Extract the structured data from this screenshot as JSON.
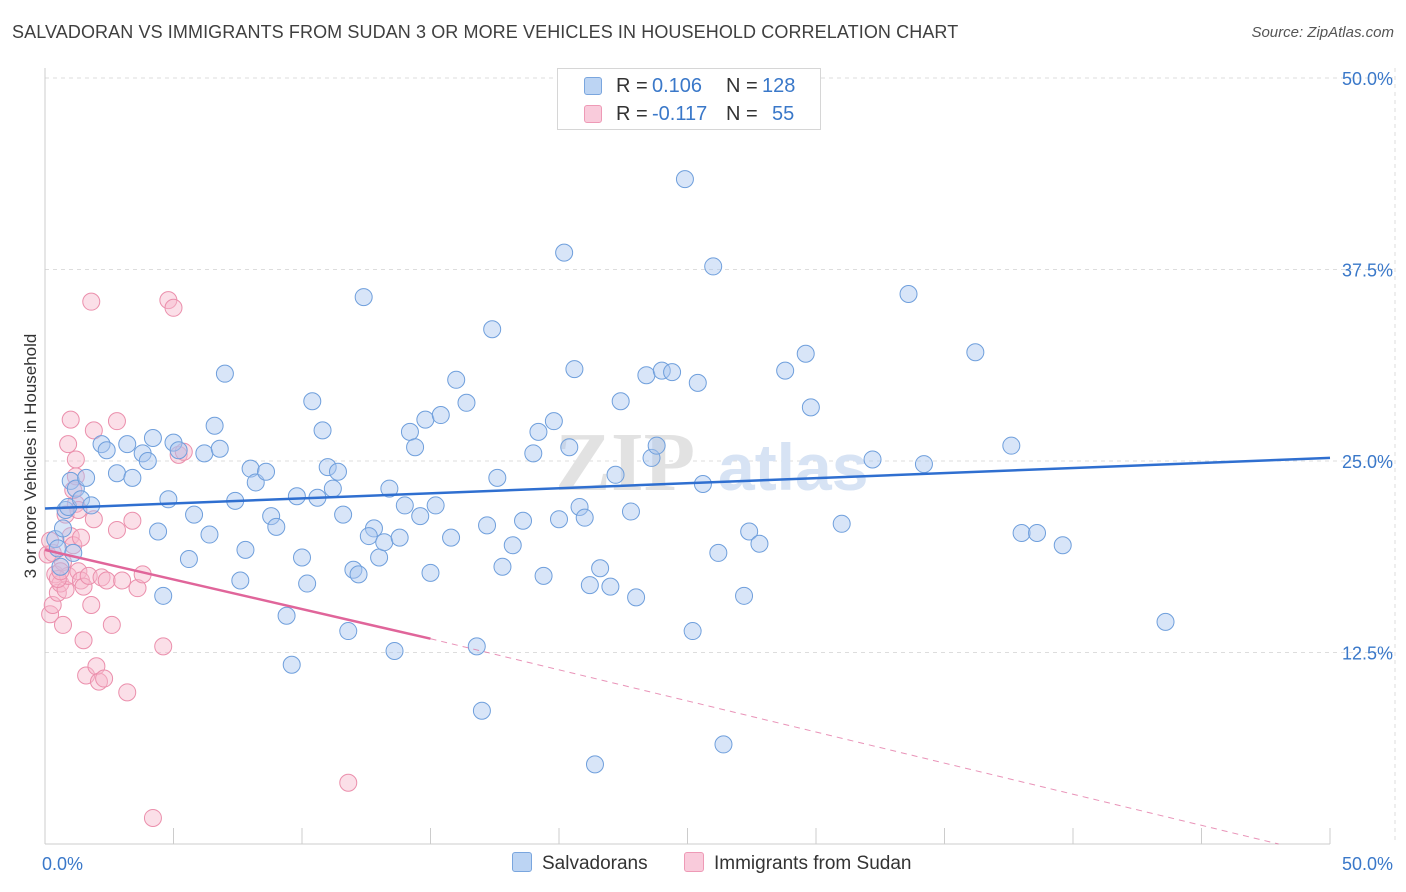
{
  "header": {
    "title": "SALVADORAN VS IMMIGRANTS FROM SUDAN 3 OR MORE VEHICLES IN HOUSEHOLD CORRELATION CHART",
    "source": "Source: ZipAtlas.com"
  },
  "legend": {
    "rows": [
      {
        "r_label": "R =",
        "r_value": "0.106",
        "n_label": "N =",
        "n_value": "128"
      },
      {
        "r_label": "R =",
        "r_value": "-0.117",
        "n_label": "N =",
        "n_value": "55"
      }
    ]
  },
  "bottom_legend": {
    "items": [
      {
        "label": "Salvadorans"
      },
      {
        "label": "Immigrants from Sudan"
      }
    ]
  },
  "watermark": {
    "text_zip": "ZIP",
    "text_atlas": "atlas"
  },
  "colors": {
    "blue_fill": "#a9c6ef",
    "blue_stroke": "#6f9fdc",
    "blue_line": "#2f6fd0",
    "pink_fill": "#f6b8cc",
    "pink_stroke": "#eb8fac",
    "pink_line": "#e0659a",
    "axis_text": "#3a78c9",
    "grid": "#dddddd"
  },
  "chart_data": {
    "type": "scatter",
    "title": "SALVADORAN VS IMMIGRANTS FROM SUDAN 3 OR MORE VEHICLES IN HOUSEHOLD CORRELATION CHART",
    "xlabel": "",
    "ylabel": "3 or more Vehicles in Household",
    "xlim": [
      0,
      50
    ],
    "ylim": [
      0,
      50
    ],
    "x_tick_labels": [
      "0.0%",
      "50.0%"
    ],
    "y_ticks": [
      12.5,
      25.0,
      37.5,
      50.0
    ],
    "y_tick_labels": [
      "12.5%",
      "25.0%",
      "37.5%",
      "50.0%"
    ],
    "grid": true,
    "series": [
      {
        "name": "Salvadorans",
        "R": 0.106,
        "N": 128,
        "trend": {
          "x0": 0,
          "y0": 21.9,
          "x1": 50,
          "y1": 25.2
        },
        "points": [
          [
            0.4,
            19.9
          ],
          [
            0.5,
            19.3
          ],
          [
            0.6,
            18.1
          ],
          [
            0.7,
            20.6
          ],
          [
            0.8,
            21.8
          ],
          [
            0.9,
            22.0
          ],
          [
            1.0,
            23.7
          ],
          [
            1.1,
            19.0
          ],
          [
            1.2,
            23.2
          ],
          [
            1.4,
            22.5
          ],
          [
            1.6,
            23.9
          ],
          [
            1.8,
            22.1
          ],
          [
            2.2,
            26.1
          ],
          [
            2.4,
            25.7
          ],
          [
            2.8,
            24.2
          ],
          [
            3.2,
            26.1
          ],
          [
            3.4,
            23.9
          ],
          [
            3.8,
            25.5
          ],
          [
            4.0,
            25.0
          ],
          [
            4.2,
            26.5
          ],
          [
            4.4,
            20.4
          ],
          [
            4.6,
            16.2
          ],
          [
            4.8,
            22.5
          ],
          [
            5.0,
            26.2
          ],
          [
            5.2,
            25.7
          ],
          [
            5.6,
            18.6
          ],
          [
            5.8,
            21.5
          ],
          [
            6.2,
            25.5
          ],
          [
            6.4,
            20.2
          ],
          [
            6.6,
            27.3
          ],
          [
            6.8,
            25.8
          ],
          [
            7.0,
            30.7
          ],
          [
            7.4,
            22.4
          ],
          [
            7.6,
            17.2
          ],
          [
            7.8,
            19.2
          ],
          [
            8.0,
            24.5
          ],
          [
            8.2,
            23.6
          ],
          [
            8.6,
            24.3
          ],
          [
            8.8,
            21.4
          ],
          [
            9.0,
            20.7
          ],
          [
            9.4,
            14.9
          ],
          [
            9.6,
            11.7
          ],
          [
            9.8,
            22.7
          ],
          [
            10.0,
            18.7
          ],
          [
            10.2,
            17.0
          ],
          [
            10.4,
            28.9
          ],
          [
            10.6,
            22.6
          ],
          [
            10.8,
            27.0
          ],
          [
            11.0,
            24.6
          ],
          [
            11.2,
            23.2
          ],
          [
            11.4,
            24.3
          ],
          [
            11.6,
            21.5
          ],
          [
            11.8,
            13.9
          ],
          [
            12.0,
            17.9
          ],
          [
            12.2,
            17.6
          ],
          [
            12.4,
            35.7
          ],
          [
            12.8,
            20.6
          ],
          [
            12.6,
            20.1
          ],
          [
            13.0,
            18.7
          ],
          [
            13.2,
            19.7
          ],
          [
            13.4,
            23.2
          ],
          [
            13.6,
            12.6
          ],
          [
            13.8,
            20.0
          ],
          [
            14.0,
            22.1
          ],
          [
            14.2,
            26.9
          ],
          [
            14.4,
            25.9
          ],
          [
            14.6,
            21.4
          ],
          [
            14.8,
            27.7
          ],
          [
            15.0,
            17.7
          ],
          [
            15.2,
            22.1
          ],
          [
            15.4,
            28.0
          ],
          [
            15.8,
            20.0
          ],
          [
            16.0,
            30.3
          ],
          [
            16.4,
            28.8
          ],
          [
            16.8,
            12.9
          ],
          [
            17.0,
            8.7
          ],
          [
            17.2,
            20.8
          ],
          [
            17.4,
            33.6
          ],
          [
            17.6,
            23.9
          ],
          [
            17.8,
            18.1
          ],
          [
            18.2,
            19.5
          ],
          [
            18.6,
            21.1
          ],
          [
            19.0,
            25.5
          ],
          [
            19.2,
            26.9
          ],
          [
            19.4,
            17.5
          ],
          [
            19.8,
            27.6
          ],
          [
            20.0,
            21.2
          ],
          [
            20.2,
            38.6
          ],
          [
            20.4,
            25.9
          ],
          [
            20.6,
            31.0
          ],
          [
            20.8,
            22.0
          ],
          [
            21.0,
            21.3
          ],
          [
            21.2,
            16.9
          ],
          [
            21.4,
            5.2
          ],
          [
            21.6,
            18.0
          ],
          [
            22.0,
            16.8
          ],
          [
            22.2,
            24.1
          ],
          [
            22.4,
            28.9
          ],
          [
            22.8,
            21.7
          ],
          [
            23.0,
            16.1
          ],
          [
            23.4,
            30.6
          ],
          [
            23.6,
            25.2
          ],
          [
            23.8,
            26.0
          ],
          [
            24.0,
            30.9
          ],
          [
            24.4,
            30.8
          ],
          [
            24.9,
            43.4
          ],
          [
            25.2,
            13.9
          ],
          [
            25.4,
            30.1
          ],
          [
            25.6,
            23.5
          ],
          [
            26.0,
            37.7
          ],
          [
            26.2,
            19.0
          ],
          [
            26.4,
            6.5
          ],
          [
            27.2,
            16.2
          ],
          [
            27.4,
            20.4
          ],
          [
            27.8,
            19.6
          ],
          [
            28.8,
            30.9
          ],
          [
            29.6,
            32.0
          ],
          [
            29.8,
            28.5
          ],
          [
            31.0,
            20.9
          ],
          [
            32.2,
            25.1
          ],
          [
            33.6,
            35.9
          ],
          [
            34.2,
            24.8
          ],
          [
            36.2,
            32.1
          ],
          [
            37.6,
            26.0
          ],
          [
            38.0,
            20.3
          ],
          [
            38.6,
            20.3
          ],
          [
            39.6,
            19.5
          ],
          [
            43.6,
            14.5
          ]
        ]
      },
      {
        "name": "Immigrants from Sudan",
        "R": -0.117,
        "N": 55,
        "trend": {
          "x0": 0,
          "y0": 19.2,
          "x1": 15,
          "y1": 13.4,
          "dashed_to_x": 48,
          "dashed_to_y": 0.0
        },
        "points": [
          [
            0.1,
            18.9
          ],
          [
            0.2,
            15.0
          ],
          [
            0.3,
            15.6
          ],
          [
            0.4,
            17.6
          ],
          [
            0.5,
            16.4
          ],
          [
            0.6,
            17.0
          ],
          [
            0.7,
            18.4
          ],
          [
            0.8,
            16.6
          ],
          [
            0.9,
            17.5
          ],
          [
            1.0,
            20.1
          ],
          [
            1.1,
            19.5
          ],
          [
            1.2,
            22.2
          ],
          [
            1.3,
            17.8
          ],
          [
            1.4,
            17.2
          ],
          [
            1.5,
            16.8
          ],
          [
            0.3,
            19.0
          ],
          [
            0.5,
            17.3
          ],
          [
            0.6,
            17.8
          ],
          [
            0.7,
            14.3
          ],
          [
            0.8,
            21.5
          ],
          [
            0.9,
            26.1
          ],
          [
            1.0,
            27.7
          ],
          [
            1.1,
            23.1
          ],
          [
            1.2,
            25.1
          ],
          [
            1.3,
            21.8
          ],
          [
            1.4,
            20.0
          ],
          [
            1.5,
            13.3
          ],
          [
            1.6,
            11.0
          ],
          [
            1.7,
            17.5
          ],
          [
            1.8,
            15.6
          ],
          [
            1.9,
            21.2
          ],
          [
            2.0,
            11.6
          ],
          [
            2.1,
            10.6
          ],
          [
            2.2,
            17.4
          ],
          [
            2.3,
            10.8
          ],
          [
            2.4,
            17.2
          ],
          [
            2.6,
            14.3
          ],
          [
            2.8,
            20.5
          ],
          [
            3.0,
            17.2
          ],
          [
            3.2,
            9.9
          ],
          [
            3.4,
            21.1
          ],
          [
            3.6,
            16.7
          ],
          [
            3.8,
            17.6
          ],
          [
            4.2,
            1.7
          ],
          [
            4.6,
            12.9
          ],
          [
            4.8,
            35.5
          ],
          [
            5.0,
            35.0
          ],
          [
            5.2,
            25.4
          ],
          [
            5.4,
            25.6
          ],
          [
            11.8,
            4.0
          ],
          [
            1.8,
            35.4
          ],
          [
            2.8,
            27.6
          ],
          [
            1.9,
            27.0
          ],
          [
            1.2,
            24.0
          ],
          [
            0.2,
            19.8
          ]
        ]
      }
    ]
  }
}
